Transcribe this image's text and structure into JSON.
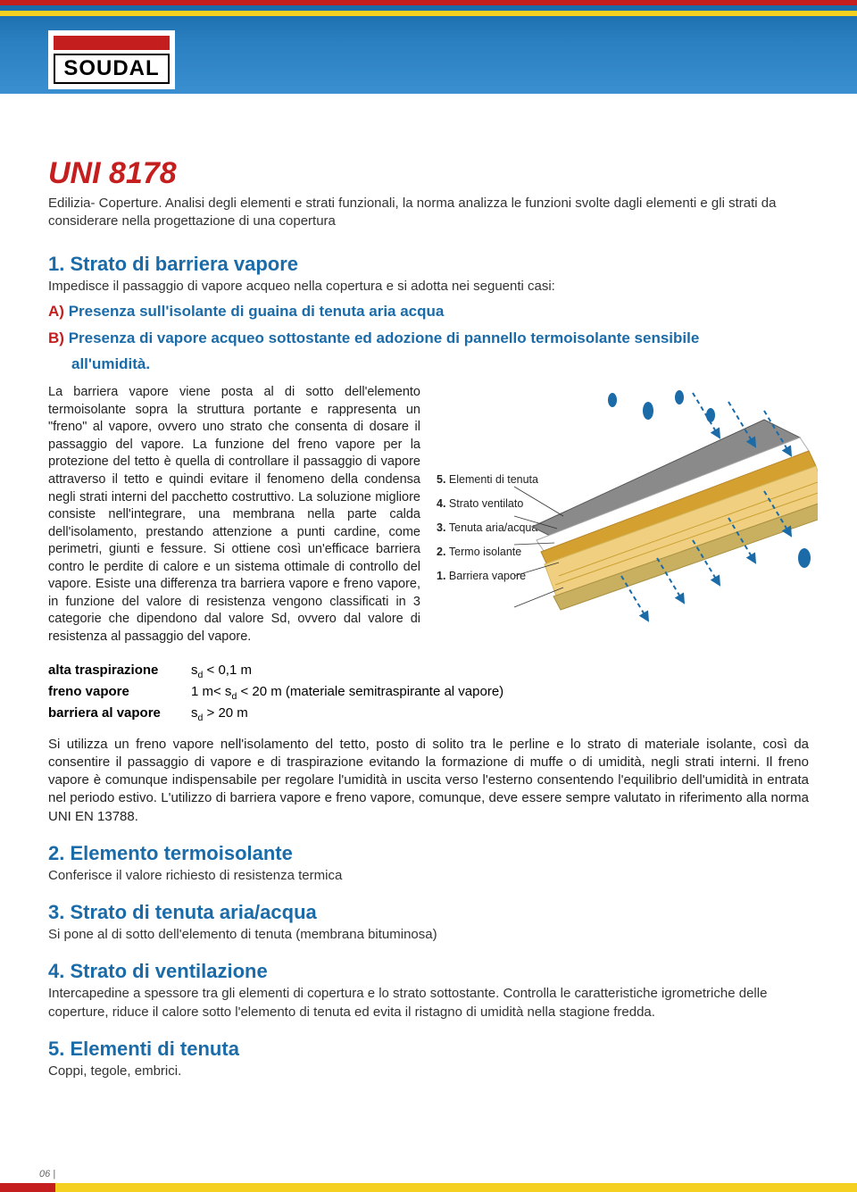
{
  "brand": {
    "name": "SOUDAL"
  },
  "colors": {
    "accent_red": "#c41e1e",
    "accent_blue": "#1a6ba8",
    "banner_yellow": "#f5d020"
  },
  "title": "UNI 8178",
  "intro": "Edilizia- Coperture. Analisi degli elementi e strati funzionali, la norma analizza le funzioni svolte dagli elementi e gli strati da considerare nella progettazione di una copertura",
  "section1": {
    "heading": "1. Strato di barriera vapore",
    "sub": "Impedisce il passaggio di vapore acqueo nella copertura e si adotta nei seguenti casi:",
    "itemA_letter": "A)",
    "itemA": "Presenza sull'isolante di guaina di tenuta aria acqua",
    "itemB_letter": "B)",
    "itemB_line1": "Presenza di vapore acqueo sottostante ed adozione di pannello termoisolante sensibile",
    "itemB_line2": "all'umidità.",
    "body": "La barriera vapore viene posta al di sotto dell'elemento termoisolante sopra la struttura portante e rappresenta un \"freno\" al vapore, ovvero uno strato che consenta di dosare il passaggio del vapore. La funzione del freno vapore per la protezione del tetto è quella di controllare il passaggio di vapore attraverso il tetto e quindi evitare il fenomeno della condensa negli strati interni del pacchetto costruttivo. La soluzione migliore consiste nell'integrare, una membrana nella parte calda dell'isolamento, prestando attenzione a punti cardine, come perimetri, giunti e fessure. Si ottiene così un'efficace barriera contro le perdite di calore e un sistema ottimale di controllo del vapore. Esiste una differenza tra barriera vapore e freno vapore, in funzione del valore di resistenza vengono classificati in 3 categorie che dipendono dal valore Sd, ovvero dal valore di resistenza al passaggio del vapore."
  },
  "diagram": {
    "labels": [
      {
        "num": "5.",
        "text": "Elementi di tenuta"
      },
      {
        "num": "4.",
        "text": "Strato ventilato"
      },
      {
        "num": "3.",
        "text": "Tenuta aria/acqua"
      },
      {
        "num": "2.",
        "text": "Termo isolante"
      },
      {
        "num": "1.",
        "text": "Barriera vapore"
      }
    ],
    "layer_colors": {
      "tile": "#8a8a8a",
      "membrane": "#d4a030",
      "insulation": "#f0d080",
      "barrier": "#c8b060",
      "rain_drop": "#1a6ba8",
      "arrow": "#1a6ba8"
    }
  },
  "categories": {
    "rows": [
      {
        "label": "alta traspirazione",
        "value_html": "s<sub>d</sub> < 0,1 m"
      },
      {
        "label": "freno vapore",
        "value_html": "1 m< s<sub>d</sub> < 20 m (materiale semitraspirante al vapore)"
      },
      {
        "label": "barriera al vapore",
        "value_html": "s<sub>d</sub> > 20 m"
      }
    ]
  },
  "para_mid": "Si utilizza un freno vapore nell'isolamento del tetto, posto di solito tra le perline e lo strato di materiale isolante, così da consentire il passaggio di vapore e di traspirazione evitando la formazione di muffe o di umidità, negli strati interni. Il freno vapore è comunque indispensabile per regolare l'umidità in uscita verso l'esterno consentendo l'equilibrio dell'umidità in entrata nel periodo estivo. L'utilizzo di barriera vapore e freno vapore, comunque, deve essere sempre valutato in riferimento alla norma UNI EN 13788.",
  "section2": {
    "heading": "2. Elemento termoisolante",
    "sub": "Conferisce il valore richiesto di resistenza termica"
  },
  "section3": {
    "heading": "3. Strato di tenuta aria/acqua",
    "sub": "Si pone al di sotto dell'elemento di tenuta (membrana bituminosa)"
  },
  "section4": {
    "heading": "4. Strato di ventilazione",
    "sub": "Intercapedine a spessore tra gli elementi di copertura e lo strato sottostante. Controlla le caratteristiche igrometriche delle coperture, riduce il calore sotto l'elemento di tenuta ed evita il ristagno di umidità nella stagione fredda."
  },
  "section5": {
    "heading": "5. Elementi di tenuta",
    "sub": "Coppi, tegole, embrici."
  },
  "page_number": "06"
}
